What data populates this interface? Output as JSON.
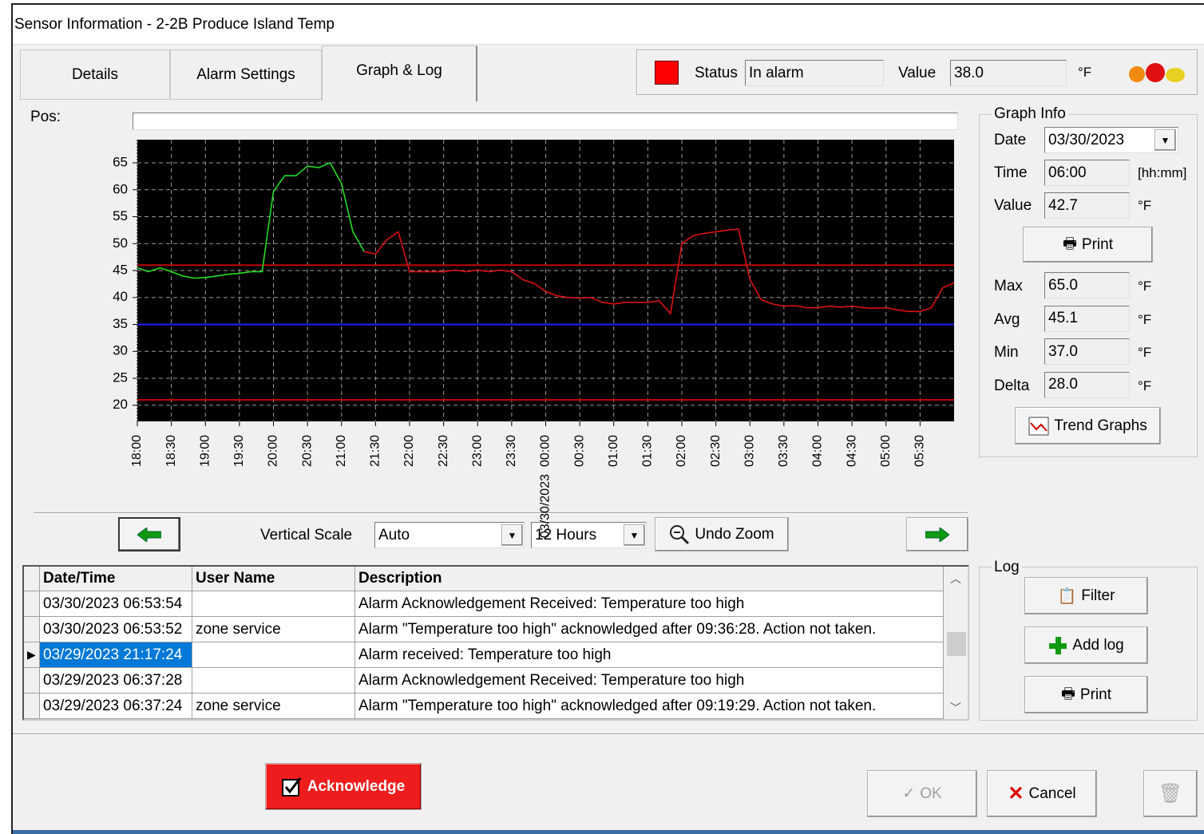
{
  "window": {
    "title": "Sensor Information - 2-2B Produce Island Temp"
  },
  "tabs": [
    "Details",
    "Alarm Settings",
    "Graph & Log"
  ],
  "status": {
    "label": "Status",
    "value": "In alarm",
    "value_label": "Value",
    "reading": "38.0",
    "unit": "°F"
  },
  "pos_label": "Pos:",
  "chart_data": {
    "type": "line",
    "x": [
      "18:00",
      "18:10",
      "18:20",
      "18:30",
      "18:40",
      "18:50",
      "19:00",
      "19:10",
      "19:20",
      "19:30",
      "19:40",
      "19:50",
      "20:00",
      "20:10",
      "20:20",
      "20:30",
      "20:40",
      "20:50",
      "21:00",
      "21:10",
      "21:20",
      "21:30",
      "21:40",
      "21:50",
      "22:00",
      "22:10",
      "22:20",
      "22:30",
      "22:40",
      "22:50",
      "23:00",
      "23:10",
      "23:20",
      "23:30",
      "23:40",
      "23:50",
      "00:00",
      "00:10",
      "00:20",
      "00:30",
      "00:40",
      "00:50",
      "01:00",
      "01:10",
      "01:20",
      "01:30",
      "01:40",
      "01:50",
      "02:00",
      "02:10",
      "02:20",
      "02:30",
      "02:40",
      "02:50",
      "03:00",
      "03:10",
      "03:20",
      "03:30",
      "03:40",
      "03:50",
      "04:00",
      "04:10",
      "04:20",
      "04:30",
      "04:40",
      "04:50",
      "05:00",
      "05:10",
      "05:20",
      "05:30",
      "05:40",
      "05:50",
      "06:00"
    ],
    "series": [
      {
        "color": "#22dd22",
        "values": [
          45.5,
          44.8,
          45.5,
          44.8,
          44.0,
          43.6,
          43.7,
          44.0,
          44.3,
          44.5,
          44.8,
          44.8,
          59.7,
          62.6,
          62.6,
          64.4,
          64.1,
          65.0,
          61.1,
          52.2,
          48.5,
          null,
          null,
          null,
          null,
          null,
          null,
          null,
          null,
          null,
          null,
          null,
          null,
          null,
          null,
          null,
          null,
          null,
          null,
          null,
          null,
          null,
          null,
          null,
          null,
          null,
          null,
          null,
          null,
          null,
          null,
          null,
          null,
          null,
          null,
          null,
          null,
          null,
          null,
          null,
          null,
          null,
          null,
          null,
          null,
          null,
          null,
          null,
          null,
          null,
          null,
          null,
          null
        ]
      },
      {
        "color": "#dd1111",
        "values": [
          null,
          null,
          null,
          null,
          null,
          null,
          null,
          null,
          null,
          null,
          null,
          null,
          null,
          null,
          null,
          null,
          null,
          null,
          null,
          null,
          48.5,
          48.1,
          50.7,
          52.2,
          44.8,
          44.8,
          44.8,
          44.8,
          45.1,
          44.8,
          45.1,
          44.8,
          45.1,
          44.8,
          43.3,
          42.6,
          41.1,
          40.3,
          40.0,
          39.9,
          40.0,
          39.1,
          38.8,
          39.1,
          39.1,
          39.1,
          39.4,
          37.0,
          50.0,
          51.5,
          51.9,
          52.2,
          52.5,
          52.7,
          43.3,
          39.6,
          38.8,
          38.4,
          38.5,
          38.1,
          38.1,
          38.4,
          38.2,
          38.4,
          38.1,
          38.0,
          38.1,
          37.7,
          37.4,
          37.4,
          38.1,
          41.8,
          42.7
        ]
      }
    ],
    "reference_lines": [
      {
        "value": 46,
        "color": "#c00000"
      },
      {
        "value": 35,
        "color": "#2020ff"
      },
      {
        "value": 21,
        "color": "#c00000"
      }
    ],
    "xlim": [
      "18:00",
      "06:00"
    ],
    "xticks": [
      "18:00",
      "18:30",
      "19:00",
      "19:30",
      "20:00",
      "20:30",
      "21:00",
      "21:30",
      "22:00",
      "22:30",
      "23:00",
      "23:30",
      "00:00",
      "00:30",
      "01:00",
      "01:30",
      "02:00",
      "02:30",
      "03:00",
      "03:30",
      "04:00",
      "04:30",
      "05:00",
      "05:30"
    ],
    "date_label": "03/30/2023",
    "ylim": [
      17,
      69.3
    ],
    "yticks": [
      20,
      25,
      30,
      35,
      40,
      45,
      50,
      55,
      60,
      65
    ],
    "grid": true
  },
  "graph_info": {
    "title": "Graph Info",
    "date_label": "Date",
    "date": "03/30/2023",
    "time_label": "Time",
    "time": "06:00",
    "time_unit": "[hh:mm]",
    "value_label": "Value",
    "value": "42.7",
    "value_unit": "°F",
    "print": "Print",
    "stats": [
      {
        "label": "Max",
        "value": "65.0",
        "unit": "°F"
      },
      {
        "label": "Avg",
        "value": "45.1",
        "unit": "°F"
      },
      {
        "label": "Min",
        "value": "37.0",
        "unit": "°F"
      },
      {
        "label": "Delta",
        "value": "28.0",
        "unit": "°F"
      }
    ],
    "trend_graphs": "Trend Graphs"
  },
  "controls": {
    "vertical_scale_label": "Vertical Scale",
    "vertical_scale": "Auto",
    "span": "12 Hours",
    "undo_zoom": "Undo Zoom"
  },
  "log_table": {
    "columns": [
      "Date/Time",
      "User Name",
      "Description"
    ],
    "rows": [
      [
        "03/30/2023 06:53:54",
        "",
        "Alarm Acknowledgement Received: Temperature too high"
      ],
      [
        "03/30/2023 06:53:52",
        "zone service",
        "Alarm \"Temperature too high\" acknowledged after 09:36:28. Action not taken."
      ],
      [
        "03/29/2023 21:17:24",
        "",
        "Alarm received: Temperature too high"
      ],
      [
        "03/29/2023 06:37:28",
        "",
        "Alarm Acknowledgement Received: Temperature too high"
      ],
      [
        "03/29/2023 06:37:24",
        "zone service",
        "Alarm \"Temperature too high\" acknowledged after 09:19:29. Action not taken."
      ]
    ],
    "selected_row": 2
  },
  "log_panel": {
    "title": "Log",
    "filter": "Filter",
    "add_log": "Add log",
    "print": "Print"
  },
  "buttons": {
    "acknowledge": "Acknowledge",
    "ok": "OK",
    "cancel": "Cancel"
  }
}
